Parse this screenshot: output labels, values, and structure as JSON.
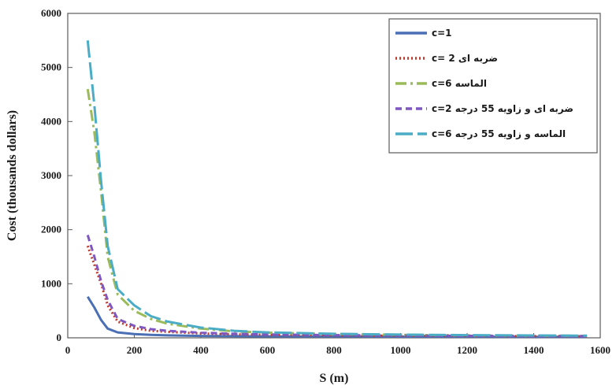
{
  "chart_data": {
    "type": "line",
    "xlabel": "S (m)",
    "ylabel": "Cost (thousands dollars)",
    "xlim": [
      0,
      1600
    ],
    "ylim": [
      0,
      6000
    ],
    "xticks": [
      0,
      200,
      400,
      600,
      800,
      1000,
      1200,
      1400,
      1600
    ],
    "yticks": [
      0,
      1000,
      2000,
      3000,
      4000,
      5000,
      6000
    ],
    "grid": false,
    "legend_position": "top-right",
    "series": [
      {
        "name": "c=1",
        "color": "#4a6fb5",
        "dash": "solid",
        "x": [
          60,
          80,
          100,
          120,
          150,
          200,
          250,
          300,
          400,
          500,
          600,
          800,
          1000,
          1200,
          1400,
          1560
        ],
        "values": [
          760,
          560,
          330,
          170,
          100,
          70,
          55,
          45,
          35,
          30,
          28,
          25,
          22,
          20,
          18,
          17
        ]
      },
      {
        "name": "c= 2  ضربه ای",
        "color": "#c0392b",
        "dash": "dotted",
        "x": [
          60,
          80,
          100,
          120,
          150,
          200,
          250,
          300,
          400,
          500,
          600,
          800,
          1000,
          1200,
          1400,
          1560
        ],
        "values": [
          1700,
          1350,
          1000,
          600,
          300,
          180,
          130,
          110,
          80,
          65,
          55,
          45,
          38,
          33,
          30,
          28
        ]
      },
      {
        "name": "c=6  الماسه",
        "color": "#9bbb59",
        "dash": "dashdot",
        "x": [
          60,
          80,
          100,
          120,
          150,
          200,
          250,
          300,
          400,
          500,
          600,
          800,
          1000,
          1200,
          1400,
          1560
        ],
        "values": [
          4600,
          3800,
          2700,
          1500,
          800,
          500,
          350,
          260,
          170,
          120,
          95,
          70,
          55,
          45,
          40,
          37
        ]
      },
      {
        "name": "c=2  ضربه ای و زاویه 55 درجه",
        "color": "#7e57c2",
        "dash": "dashed",
        "x": [
          60,
          80,
          100,
          120,
          150,
          200,
          250,
          300,
          400,
          500,
          600,
          800,
          1000,
          1200,
          1400,
          1560
        ],
        "values": [
          1900,
          1500,
          1050,
          700,
          350,
          220,
          160,
          130,
          95,
          75,
          62,
          50,
          42,
          37,
          33,
          31
        ]
      },
      {
        "name": "c=6  الماسه و زاویه 55 درجه",
        "color": "#4bacc6",
        "dash": "longdash",
        "x": [
          60,
          80,
          100,
          120,
          150,
          200,
          250,
          300,
          400,
          500,
          600,
          800,
          1000,
          1200,
          1400,
          1560
        ],
        "values": [
          5500,
          4300,
          2900,
          1700,
          900,
          600,
          400,
          300,
          190,
          130,
          100,
          75,
          60,
          50,
          44,
          40
        ]
      }
    ]
  }
}
